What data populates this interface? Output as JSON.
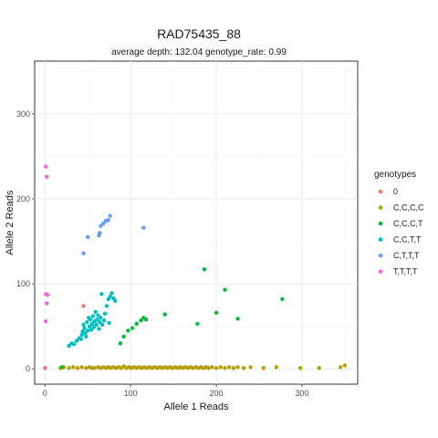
{
  "chart_data": {
    "type": "scatter",
    "title": "RAD75435_88",
    "subtitle": "average depth:  132.04  genotype_rate:  0.99",
    "xlabel": "Allele 1 Reads",
    "ylabel": "Allele 2 Reads",
    "xlim": [
      -12,
      365
    ],
    "ylim": [
      -18,
      362
    ],
    "x_ticks": [
      0,
      100,
      200,
      300
    ],
    "y_ticks": [
      0,
      100,
      200,
      300
    ],
    "grid": true,
    "legend_title": "genotypes",
    "legend_position": "right",
    "series": [
      {
        "name": "0",
        "color": "#F8766D",
        "points": [
          [
            0,
            1
          ],
          [
            45,
            74
          ]
        ]
      },
      {
        "name": "C,C,C,C",
        "color": "#B79F00",
        "points": [
          [
            18,
            1
          ],
          [
            22,
            2
          ],
          [
            28,
            1
          ],
          [
            33,
            2
          ],
          [
            38,
            1
          ],
          [
            43,
            2
          ],
          [
            48,
            1
          ],
          [
            52,
            2
          ],
          [
            55,
            1
          ],
          [
            58,
            1
          ],
          [
            62,
            2
          ],
          [
            65,
            1
          ],
          [
            68,
            2
          ],
          [
            71,
            1
          ],
          [
            74,
            2
          ],
          [
            77,
            1
          ],
          [
            80,
            2
          ],
          [
            83,
            1
          ],
          [
            86,
            2
          ],
          [
            89,
            1
          ],
          [
            92,
            3
          ],
          [
            95,
            1
          ],
          [
            98,
            2
          ],
          [
            101,
            1
          ],
          [
            104,
            2
          ],
          [
            107,
            1
          ],
          [
            110,
            2
          ],
          [
            113,
            1
          ],
          [
            116,
            2
          ],
          [
            119,
            1
          ],
          [
            122,
            2
          ],
          [
            125,
            1
          ],
          [
            128,
            2
          ],
          [
            131,
            1
          ],
          [
            134,
            2
          ],
          [
            137,
            1
          ],
          [
            140,
            2
          ],
          [
            143,
            1
          ],
          [
            146,
            2
          ],
          [
            149,
            1
          ],
          [
            152,
            2
          ],
          [
            155,
            1
          ],
          [
            158,
            2
          ],
          [
            161,
            1
          ],
          [
            164,
            2
          ],
          [
            167,
            1
          ],
          [
            170,
            2
          ],
          [
            173,
            1
          ],
          [
            176,
            2
          ],
          [
            179,
            1
          ],
          [
            182,
            2
          ],
          [
            185,
            1
          ],
          [
            188,
            2
          ],
          [
            191,
            1
          ],
          [
            195,
            2
          ],
          [
            200,
            1
          ],
          [
            205,
            2
          ],
          [
            210,
            1
          ],
          [
            215,
            2
          ],
          [
            220,
            1
          ],
          [
            225,
            2
          ],
          [
            232,
            1
          ],
          [
            240,
            2
          ],
          [
            255,
            1
          ],
          [
            270,
            2
          ],
          [
            298,
            1
          ],
          [
            320,
            1
          ],
          [
            345,
            2
          ],
          [
            350,
            4
          ]
        ]
      },
      {
        "name": "C,C,C,T",
        "color": "#00BA38",
        "points": [
          [
            20,
            2
          ],
          [
            88,
            30
          ],
          [
            92,
            38
          ],
          [
            97,
            45
          ],
          [
            102,
            48
          ],
          [
            107,
            53
          ],
          [
            112,
            57
          ],
          [
            115,
            60
          ],
          [
            118,
            58
          ],
          [
            140,
            64
          ],
          [
            178,
            53
          ],
          [
            186,
            117
          ],
          [
            200,
            66
          ],
          [
            210,
            93
          ],
          [
            225,
            59
          ],
          [
            277,
            82
          ]
        ]
      },
      {
        "name": "C,C,T,T",
        "color": "#00BFC4",
        "points": [
          [
            28,
            27
          ],
          [
            31,
            30
          ],
          [
            34,
            29
          ],
          [
            37,
            33
          ],
          [
            40,
            36
          ],
          [
            42,
            35
          ],
          [
            43,
            40
          ],
          [
            44,
            44
          ],
          [
            45,
            52
          ],
          [
            46,
            48
          ],
          [
            47,
            42
          ],
          [
            48,
            38
          ],
          [
            49,
            55
          ],
          [
            50,
            45
          ],
          [
            51,
            60
          ],
          [
            52,
            50
          ],
          [
            53,
            58
          ],
          [
            54,
            46
          ],
          [
            55,
            53
          ],
          [
            56,
            62
          ],
          [
            57,
            49
          ],
          [
            58,
            56
          ],
          [
            59,
            67
          ],
          [
            60,
            52
          ],
          [
            61,
            58
          ],
          [
            62,
            63
          ],
          [
            63,
            47
          ],
          [
            64,
            55
          ],
          [
            65,
            60
          ],
          [
            66,
            88
          ],
          [
            67,
            52
          ],
          [
            69,
            57
          ],
          [
            70,
            65
          ],
          [
            72,
            74
          ],
          [
            74,
            82
          ],
          [
            75,
            54
          ],
          [
            76,
            85
          ],
          [
            78,
            89
          ],
          [
            80,
            83
          ],
          [
            82,
            80
          ]
        ]
      },
      {
        "name": "C,T,T,T",
        "color": "#619CFF",
        "points": [
          [
            45,
            136
          ],
          [
            50,
            155
          ],
          [
            63,
            157
          ],
          [
            64,
            160
          ],
          [
            65,
            168
          ],
          [
            68,
            171
          ],
          [
            71,
            174
          ],
          [
            74,
            175
          ],
          [
            76,
            180
          ],
          [
            115,
            166
          ]
        ]
      },
      {
        "name": "T,T,T,T",
        "color": "#F564E3",
        "points": [
          [
            1,
            238
          ],
          [
            2,
            226
          ],
          [
            1,
            88
          ],
          [
            3,
            87
          ],
          [
            2,
            77
          ],
          [
            1,
            56
          ]
        ]
      }
    ]
  }
}
